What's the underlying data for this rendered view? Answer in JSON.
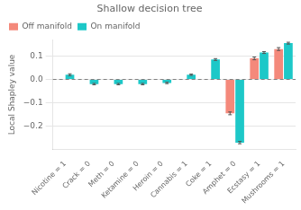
{
  "chart_data": {
    "type": "bar",
    "title": "Shallow decision tree",
    "ylabel": "Local Shapley value",
    "categories": [
      "Nicotine = 1",
      "Crack = 0",
      "Meth = 0",
      "Ketamine = 0",
      "Heroin = 0",
      "Cannabis = 1",
      "Coke = 1",
      "Amphet = 0",
      "Ecstasy = 1",
      "Mushrooms = 1"
    ],
    "series": [
      {
        "name": "Off manifold",
        "color": "#F4897B",
        "values": [
          0.0,
          0.0,
          0.0,
          0.0,
          0.0,
          0.0,
          0.0,
          -0.145,
          0.09,
          0.13
        ],
        "errors": [
          0.0,
          0.0,
          0.0,
          0.0,
          0.0,
          0.0,
          0.0,
          0.006,
          0.006,
          0.006
        ]
      },
      {
        "name": "On manifold",
        "color": "#1DC8C8",
        "values": [
          0.02,
          -0.02,
          -0.02,
          -0.02,
          -0.015,
          0.02,
          0.085,
          -0.27,
          0.115,
          0.155
        ],
        "errors": [
          0.004,
          0.003,
          0.003,
          0.003,
          0.003,
          0.003,
          0.004,
          0.005,
          0.004,
          0.004
        ]
      }
    ],
    "hline": 0.0,
    "ylim": [
      -0.3,
      0.17
    ],
    "yticks": [
      {
        "value": -0.2,
        "label": "−0.2"
      },
      {
        "value": -0.1,
        "label": "−0.1"
      },
      {
        "value": 0.0,
        "label": "0.0"
      },
      {
        "value": 0.1,
        "label": "0.1"
      }
    ],
    "grid": true,
    "legend": "upper left"
  }
}
